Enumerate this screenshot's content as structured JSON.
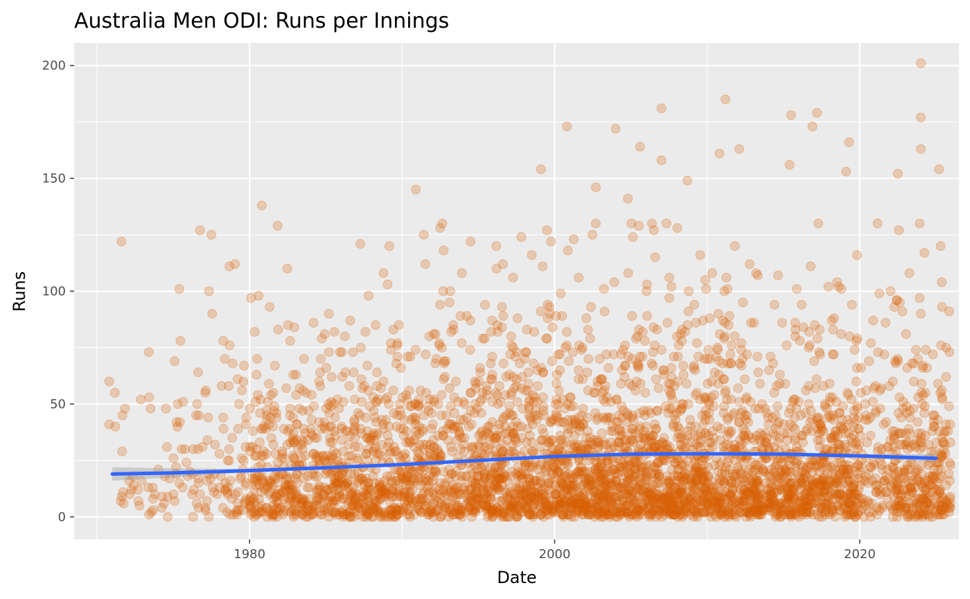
{
  "chart_data": {
    "type": "scatter",
    "title": "Australia Men ODI: Runs per Innings",
    "xlabel": "Date",
    "ylabel": "Runs",
    "x_ticks": [
      "1980",
      "2000",
      "2020"
    ],
    "y_ticks": [
      "0",
      "50",
      "100",
      "150",
      "200"
    ],
    "xlim": [
      1968.5,
      2026.5
    ],
    "ylim": [
      -10,
      210
    ],
    "grid": true,
    "legend": "none",
    "point_color": "#D95F02",
    "point_alpha": 0.25,
    "trend_color": "#3366FF",
    "band_color": "#999999",
    "panel_background": "#EBEBEB",
    "trend_line": {
      "x": [
        1971,
        1975,
        1980,
        1985,
        1990,
        1995,
        2000,
        2005,
        2010,
        2015,
        2020,
        2025
      ],
      "y": [
        19,
        19.5,
        20.5,
        21.8,
        23.2,
        25,
        26.8,
        27.8,
        28,
        27.8,
        27,
        26
      ],
      "band_lower": [
        16,
        17.5,
        19.8,
        21.3,
        22.8,
        24.6,
        26.4,
        27.4,
        27.6,
        27.3,
        26.3,
        24.2
      ],
      "band_upper": [
        22,
        21.5,
        21.2,
        22.3,
        23.6,
        25.4,
        27.2,
        28.2,
        28.4,
        28.3,
        27.7,
        27.8
      ]
    },
    "highlight_points": [
      {
        "x": 2024.0,
        "y": 201
      },
      {
        "x": 2011.2,
        "y": 185
      },
      {
        "x": 2007.0,
        "y": 181
      },
      {
        "x": 2017.2,
        "y": 179
      },
      {
        "x": 2015.5,
        "y": 178
      },
      {
        "x": 2024.0,
        "y": 177
      },
      {
        "x": 2000.8,
        "y": 173
      },
      {
        "x": 2016.9,
        "y": 173
      },
      {
        "x": 2004.0,
        "y": 172
      },
      {
        "x": 2019.3,
        "y": 166
      },
      {
        "x": 2005.6,
        "y": 164
      },
      {
        "x": 2012.1,
        "y": 163
      },
      {
        "x": 2024.0,
        "y": 163
      },
      {
        "x": 2010.8,
        "y": 161
      },
      {
        "x": 2007.0,
        "y": 158
      },
      {
        "x": 2015.4,
        "y": 156
      },
      {
        "x": 1999.1,
        "y": 154
      },
      {
        "x": 2025.2,
        "y": 154
      },
      {
        "x": 2019.1,
        "y": 153
      },
      {
        "x": 2022.5,
        "y": 152
      },
      {
        "x": 2008.7,
        "y": 149
      },
      {
        "x": 1990.9,
        "y": 145
      },
      {
        "x": 2002.7,
        "y": 146
      },
      {
        "x": 2004.8,
        "y": 141
      },
      {
        "x": 1980.8,
        "y": 138
      },
      {
        "x": 2025.3,
        "y": 120
      },
      {
        "x": 1977.5,
        "y": 125
      },
      {
        "x": 1975.4,
        "y": 101
      },
      {
        "x": 1970.8,
        "y": 60
      },
      {
        "x": 1970.8,
        "y": 41
      }
    ]
  }
}
